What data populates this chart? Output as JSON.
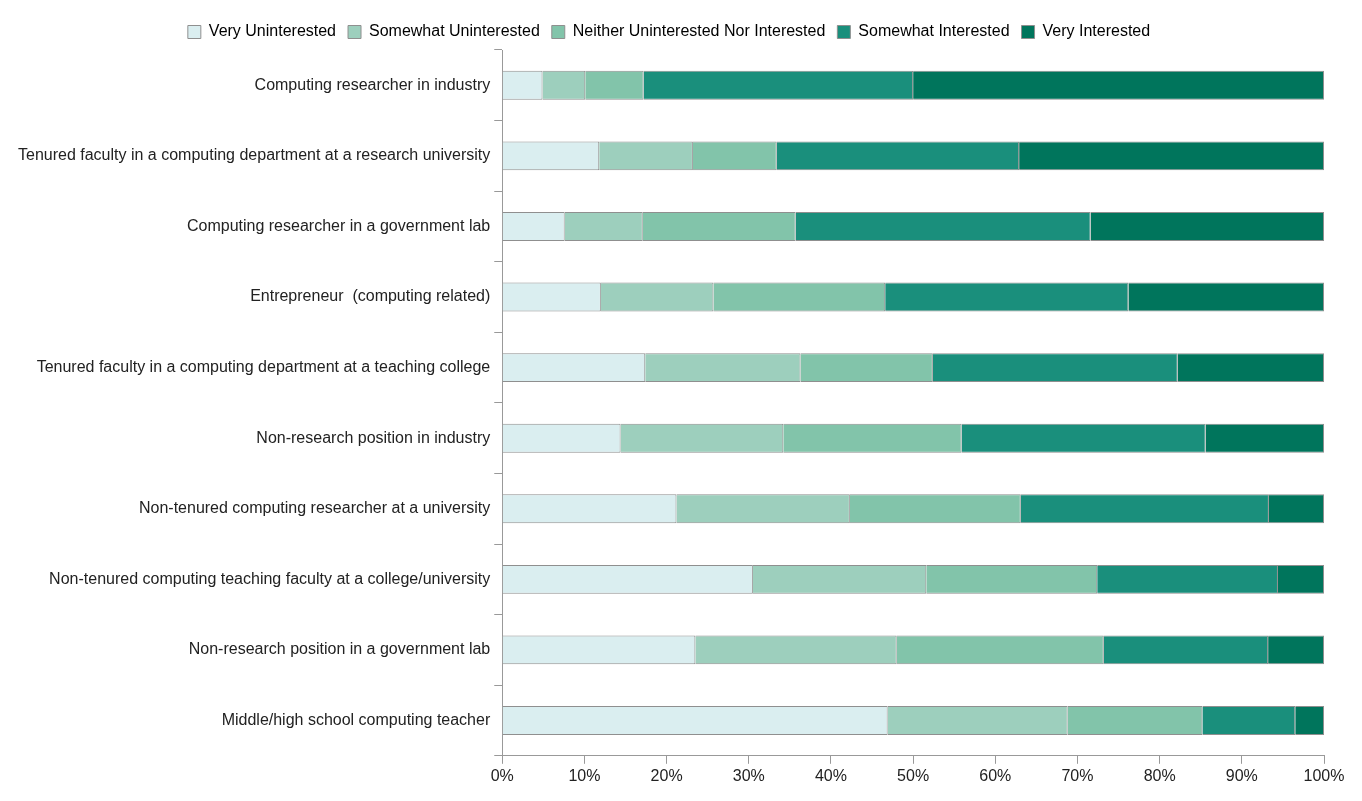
{
  "chart_data": {
    "type": "bar",
    "orientation": "horizontal",
    "stacked": true,
    "legend": "top",
    "grid": false,
    "categories": [
      "Computing researcher in industry",
      "Tenured faculty in a computing department at a research university",
      "Computing researcher in a government lab",
      "Entrepreneur  (computing related)",
      "Tenured faculty in a computing department at a teaching college",
      "Non-research position in industry",
      "Non-tenured computing researcher at a university",
      "Non-tenured computing teaching faculty at a college/university",
      "Non-research position in a government lab",
      "Middle/high school computing teacher"
    ],
    "series": [
      {
        "name": "Very Uninterested",
        "color": "#daeef0",
        "values": [
          4.9,
          11.8,
          7.6,
          12.0,
          17.4,
          14.4,
          21.2,
          30.5,
          23.5,
          46.9
        ]
      },
      {
        "name": "Somewhat Uninterested",
        "color": "#9dcfbd",
        "values": [
          5.2,
          11.4,
          9.5,
          13.7,
          18.9,
          19.8,
          21.1,
          21.1,
          24.5,
          21.9
        ]
      },
      {
        "name": "Neither Uninterested Nor Interested",
        "color": "#82c4aa",
        "values": [
          7.1,
          10.2,
          18.6,
          20.9,
          16.1,
          21.7,
          20.8,
          20.8,
          25.2,
          16.4
        ]
      },
      {
        "name": "Somewhat Interested",
        "color": "#1a8f7c",
        "values": [
          32.8,
          29.5,
          35.9,
          29.6,
          29.8,
          29.7,
          30.2,
          22.0,
          20.0,
          11.3
        ]
      },
      {
        "name": "Very Interested",
        "color": "#00755c",
        "values": [
          50.0,
          37.1,
          28.4,
          23.8,
          17.8,
          14.4,
          6.7,
          5.6,
          6.8,
          3.5
        ]
      }
    ],
    "xlim": [
      0,
      100
    ],
    "xticks": [
      {
        "value": 0,
        "label": "0%"
      },
      {
        "value": 10,
        "label": "10%"
      },
      {
        "value": 20,
        "label": "20%"
      },
      {
        "value": 30,
        "label": "30%"
      },
      {
        "value": 40,
        "label": "40%"
      },
      {
        "value": 50,
        "label": "50%"
      },
      {
        "value": 60,
        "label": "60%"
      },
      {
        "value": 70,
        "label": "70%"
      },
      {
        "value": 80,
        "label": "80%"
      },
      {
        "value": 90,
        "label": "90%"
      },
      {
        "value": 100,
        "label": "100%"
      }
    ]
  }
}
